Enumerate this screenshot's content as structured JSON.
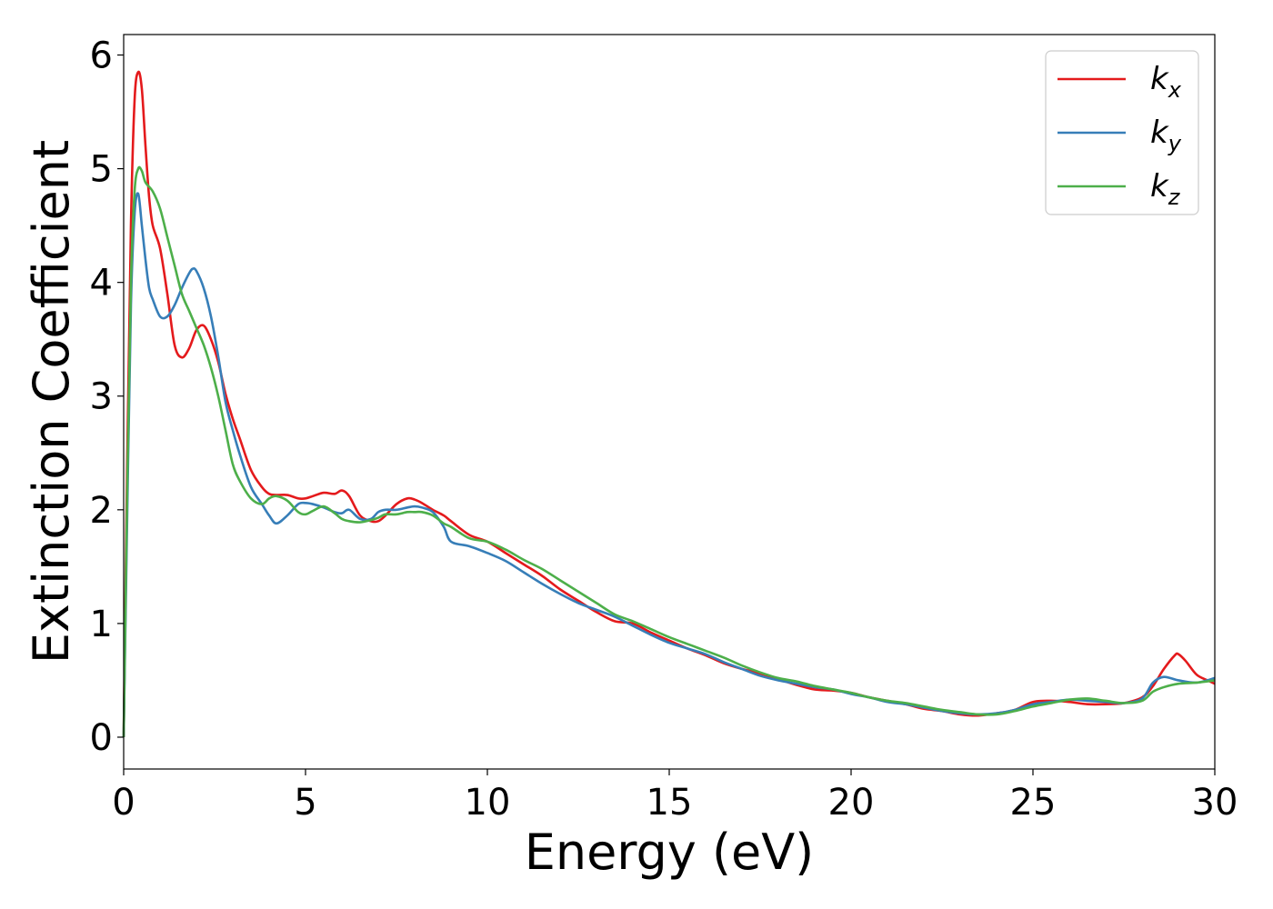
{
  "chart_data": {
    "type": "line",
    "xlabel": "Energy (eV)",
    "ylabel": "Extinction Coefficient",
    "xlim": [
      0,
      30
    ],
    "ylim": [
      -0.28,
      6.18
    ],
    "xticks": [
      0,
      5,
      10,
      15,
      20,
      25,
      30
    ],
    "yticks": [
      0,
      1,
      2,
      3,
      4,
      5,
      6
    ],
    "grid": false,
    "legend_position": "top-right",
    "series": [
      {
        "name": "k",
        "subscript": "x",
        "color": "#e41a1c",
        "x": [
          0,
          0.1,
          0.2,
          0.3,
          0.4,
          0.5,
          0.6,
          0.7,
          0.8,
          1.0,
          1.2,
          1.4,
          1.6,
          1.8,
          2.0,
          2.2,
          2.4,
          2.6,
          2.8,
          3.0,
          3.2,
          3.5,
          3.8,
          4.0,
          4.2,
          4.5,
          4.8,
          5.0,
          5.2,
          5.5,
          5.8,
          6.0,
          6.2,
          6.5,
          6.8,
          7.0,
          7.2,
          7.5,
          7.8,
          8.0,
          8.2,
          8.5,
          8.8,
          9.0,
          9.5,
          10.0,
          10.5,
          11.0,
          11.5,
          12.0,
          12.5,
          13.0,
          13.5,
          14.0,
          14.5,
          15.0,
          15.5,
          16.0,
          16.5,
          17.0,
          17.5,
          18.0,
          18.5,
          19.0,
          19.5,
          20.0,
          20.5,
          21.0,
          21.5,
          22.0,
          22.5,
          23.0,
          23.5,
          24.0,
          24.5,
          25.0,
          25.5,
          26.0,
          26.5,
          27.0,
          27.5,
          28.0,
          28.3,
          28.6,
          28.9,
          29.0,
          29.2,
          29.5,
          29.8,
          30.0
        ],
        "values": [
          0,
          2.5,
          4.5,
          5.6,
          5.85,
          5.7,
          5.2,
          4.75,
          4.5,
          4.3,
          3.9,
          3.45,
          3.34,
          3.42,
          3.58,
          3.62,
          3.5,
          3.3,
          3.02,
          2.8,
          2.62,
          2.35,
          2.2,
          2.14,
          2.13,
          2.13,
          2.1,
          2.1,
          2.12,
          2.15,
          2.14,
          2.17,
          2.12,
          1.95,
          1.9,
          1.9,
          1.95,
          2.05,
          2.1,
          2.09,
          2.06,
          2.0,
          1.95,
          1.9,
          1.78,
          1.72,
          1.62,
          1.52,
          1.42,
          1.3,
          1.2,
          1.1,
          1.02,
          1.0,
          0.92,
          0.85,
          0.78,
          0.72,
          0.65,
          0.6,
          0.56,
          0.51,
          0.46,
          0.42,
          0.41,
          0.39,
          0.35,
          0.32,
          0.29,
          0.25,
          0.23,
          0.2,
          0.19,
          0.21,
          0.24,
          0.31,
          0.32,
          0.31,
          0.29,
          0.29,
          0.3,
          0.35,
          0.45,
          0.6,
          0.72,
          0.73,
          0.67,
          0.55,
          0.5,
          0.47
        ]
      },
      {
        "name": "k",
        "subscript": "y",
        "color": "#377eb8",
        "x": [
          0,
          0.1,
          0.2,
          0.3,
          0.4,
          0.5,
          0.6,
          0.7,
          0.8,
          1.0,
          1.2,
          1.4,
          1.6,
          1.8,
          1.9,
          2.0,
          2.2,
          2.4,
          2.6,
          2.8,
          3.0,
          3.2,
          3.5,
          3.8,
          4.0,
          4.2,
          4.5,
          4.8,
          5.0,
          5.2,
          5.5,
          5.8,
          6.0,
          6.2,
          6.5,
          6.8,
          7.0,
          7.2,
          7.5,
          7.8,
          8.0,
          8.2,
          8.5,
          8.8,
          9.0,
          9.5,
          10.0,
          10.5,
          11.0,
          11.5,
          12.0,
          12.5,
          13.0,
          13.5,
          14.0,
          14.5,
          15.0,
          15.5,
          16.0,
          16.5,
          17.0,
          17.5,
          18.0,
          18.5,
          19.0,
          19.5,
          20.0,
          20.5,
          21.0,
          21.5,
          22.0,
          22.5,
          23.0,
          23.5,
          24.0,
          24.5,
          25.0,
          25.5,
          26.0,
          26.5,
          27.0,
          27.5,
          28.0,
          28.3,
          28.6,
          29.0,
          29.5,
          30.0
        ],
        "values": [
          0,
          2.0,
          3.8,
          4.6,
          4.78,
          4.5,
          4.2,
          3.95,
          3.85,
          3.7,
          3.7,
          3.8,
          3.95,
          4.08,
          4.12,
          4.1,
          3.95,
          3.7,
          3.35,
          2.95,
          2.7,
          2.48,
          2.2,
          2.05,
          1.95,
          1.88,
          1.95,
          2.05,
          2.06,
          2.05,
          2.02,
          1.98,
          1.97,
          2.0,
          1.92,
          1.92,
          1.98,
          2.0,
          2.0,
          2.02,
          2.03,
          2.02,
          1.98,
          1.85,
          1.72,
          1.68,
          1.62,
          1.55,
          1.45,
          1.35,
          1.26,
          1.18,
          1.12,
          1.06,
          0.98,
          0.9,
          0.83,
          0.78,
          0.73,
          0.66,
          0.6,
          0.54,
          0.5,
          0.47,
          0.44,
          0.42,
          0.38,
          0.35,
          0.31,
          0.29,
          0.26,
          0.23,
          0.21,
          0.2,
          0.21,
          0.24,
          0.29,
          0.31,
          0.33,
          0.32,
          0.31,
          0.3,
          0.34,
          0.48,
          0.53,
          0.5,
          0.48,
          0.52
        ]
      },
      {
        "name": "k",
        "subscript": "z",
        "color": "#4daf4a",
        "x": [
          0,
          0.1,
          0.2,
          0.3,
          0.4,
          0.5,
          0.6,
          0.8,
          1.0,
          1.2,
          1.4,
          1.6,
          1.8,
          2.0,
          2.2,
          2.4,
          2.6,
          2.8,
          3.0,
          3.2,
          3.5,
          3.8,
          4.0,
          4.2,
          4.5,
          4.8,
          5.0,
          5.2,
          5.5,
          5.8,
          6.0,
          6.2,
          6.5,
          6.8,
          7.0,
          7.2,
          7.5,
          7.8,
          8.0,
          8.2,
          8.5,
          8.8,
          9.0,
          9.5,
          10.0,
          10.5,
          11.0,
          11.5,
          12.0,
          12.5,
          13.0,
          13.5,
          14.0,
          14.5,
          15.0,
          15.5,
          16.0,
          16.5,
          17.0,
          17.5,
          18.0,
          18.5,
          19.0,
          19.5,
          20.0,
          20.5,
          21.0,
          21.5,
          22.0,
          22.5,
          23.0,
          23.5,
          24.0,
          24.5,
          25.0,
          25.5,
          26.0,
          26.5,
          27.0,
          27.5,
          28.0,
          28.3,
          28.6,
          29.0,
          29.5,
          30.0
        ],
        "values": [
          0,
          2.2,
          4.0,
          4.8,
          5.0,
          4.98,
          4.88,
          4.8,
          4.65,
          4.4,
          4.15,
          3.9,
          3.75,
          3.6,
          3.45,
          3.25,
          3.0,
          2.7,
          2.4,
          2.25,
          2.1,
          2.05,
          2.1,
          2.12,
          2.08,
          1.98,
          1.96,
          1.99,
          2.03,
          1.97,
          1.92,
          1.9,
          1.89,
          1.91,
          1.93,
          1.96,
          1.96,
          1.98,
          1.98,
          1.98,
          1.95,
          1.88,
          1.85,
          1.75,
          1.72,
          1.65,
          1.56,
          1.48,
          1.38,
          1.28,
          1.18,
          1.08,
          1.02,
          0.95,
          0.88,
          0.82,
          0.76,
          0.7,
          0.63,
          0.57,
          0.52,
          0.49,
          0.45,
          0.42,
          0.39,
          0.35,
          0.32,
          0.3,
          0.27,
          0.24,
          0.22,
          0.2,
          0.2,
          0.23,
          0.27,
          0.3,
          0.33,
          0.34,
          0.32,
          0.3,
          0.32,
          0.4,
          0.44,
          0.47,
          0.48,
          0.5
        ]
      }
    ]
  }
}
